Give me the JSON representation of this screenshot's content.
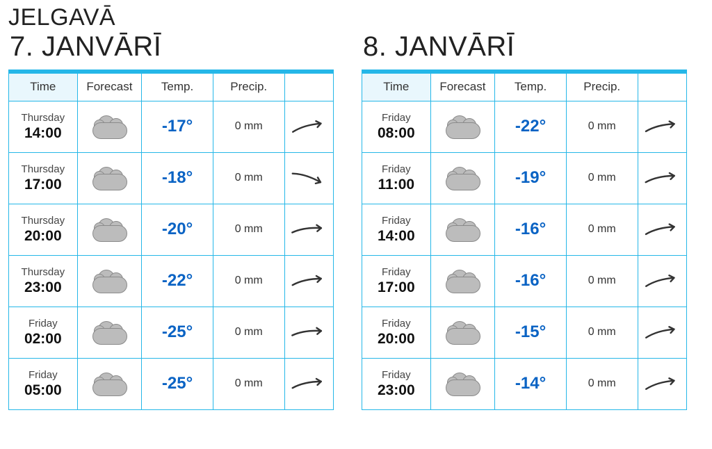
{
  "city": "JELGAVĀ",
  "colors": {
    "border": "#25b7e8",
    "header_shade": "#e9f7fd",
    "temp": "#0a63c4",
    "cloud_fill": "#bcbcbc",
    "cloud_stroke": "#8a8a8a",
    "arrow": "#333333",
    "background": "#ffffff"
  },
  "columns": [
    "Time",
    "Forecast",
    "Temp.",
    "Precip.",
    ""
  ],
  "days": [
    {
      "date_title": "7. JANVĀRĪ",
      "rows": [
        {
          "day": "Thursday",
          "hour": "14:00",
          "icon": "cloud",
          "temp": "-17°",
          "precip": "0 mm",
          "wind_rot": -14
        },
        {
          "day": "Thursday",
          "hour": "17:00",
          "icon": "cloud",
          "temp": "-18°",
          "precip": "0 mm",
          "wind_rot": 20
        },
        {
          "day": "Thursday",
          "hour": "20:00",
          "icon": "cloud",
          "temp": "-20°",
          "precip": "0 mm",
          "wind_rot": -6
        },
        {
          "day": "Thursday",
          "hour": "23:00",
          "icon": "cloud",
          "temp": "-22°",
          "precip": "0 mm",
          "wind_rot": -10
        },
        {
          "day": "Friday",
          "hour": "02:00",
          "icon": "cloud_night",
          "temp": "-25°",
          "precip": "0 mm",
          "wind_rot": -6
        },
        {
          "day": "Friday",
          "hour": "05:00",
          "icon": "cloud",
          "temp": "-25°",
          "precip": "0 mm",
          "wind_rot": -10
        }
      ]
    },
    {
      "date_title": "8. JANVĀRĪ",
      "rows": [
        {
          "day": "Friday",
          "hour": "08:00",
          "icon": "cloud",
          "temp": "-22°",
          "precip": "0 mm",
          "wind_rot": -12
        },
        {
          "day": "Friday",
          "hour": "11:00",
          "icon": "cloud",
          "temp": "-19°",
          "precip": "0 mm",
          "wind_rot": -10
        },
        {
          "day": "Friday",
          "hour": "14:00",
          "icon": "cloud",
          "temp": "-16°",
          "precip": "0 mm",
          "wind_rot": -12
        },
        {
          "day": "Friday",
          "hour": "17:00",
          "icon": "cloud",
          "temp": "-16°",
          "precip": "0 mm",
          "wind_rot": -14
        },
        {
          "day": "Friday",
          "hour": "20:00",
          "icon": "cloud",
          "temp": "-15°",
          "precip": "0 mm",
          "wind_rot": -14
        },
        {
          "day": "Friday",
          "hour": "23:00",
          "icon": "cloud",
          "temp": "-14°",
          "precip": "0 mm",
          "wind_rot": -14
        }
      ]
    }
  ]
}
